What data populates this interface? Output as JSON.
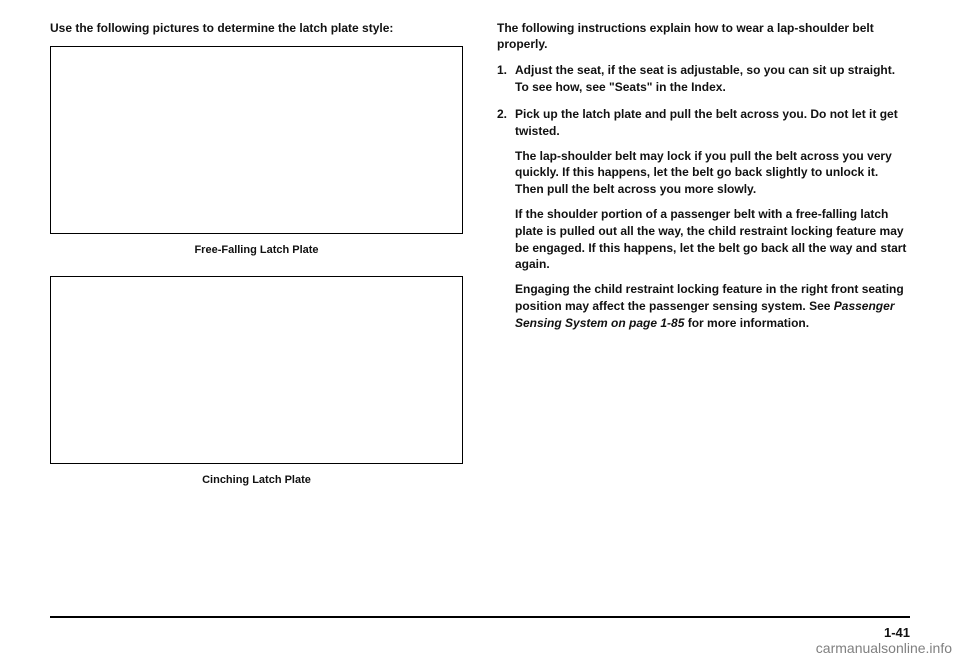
{
  "left": {
    "intro": "Use the following pictures to determine the latch plate style:",
    "caption1": "Free-Falling Latch Plate",
    "caption2": "Cinching Latch Plate"
  },
  "right": {
    "intro": "The following instructions explain how to wear a lap-shoulder belt properly.",
    "step1_num": "1.",
    "step1": "Adjust the seat, if the seat is adjustable, so you can sit up straight. To see how, see \"Seats\" in the Index.",
    "step2_num": "2.",
    "step2": "Pick up the latch plate and pull the belt across you. Do not let it get twisted.",
    "step2_p1": "The lap-shoulder belt may lock if you pull the belt across you very quickly. If this happens, let the belt go back slightly to unlock it. Then pull the belt across you more slowly.",
    "step2_p2": "If the shoulder portion of a passenger belt with a free-falling latch plate is pulled out all the way, the child restraint locking feature may be engaged. If this happens, let the belt go back all the way and start again.",
    "step2_p3a": "Engaging the child restraint locking feature in the right front seating position may affect the passenger sensing system. See ",
    "step2_p3b": "Passenger Sensing System on page 1-85",
    "step2_p3c": " for more information."
  },
  "page_num": "1-41",
  "watermark": "carmanualsonline.info"
}
